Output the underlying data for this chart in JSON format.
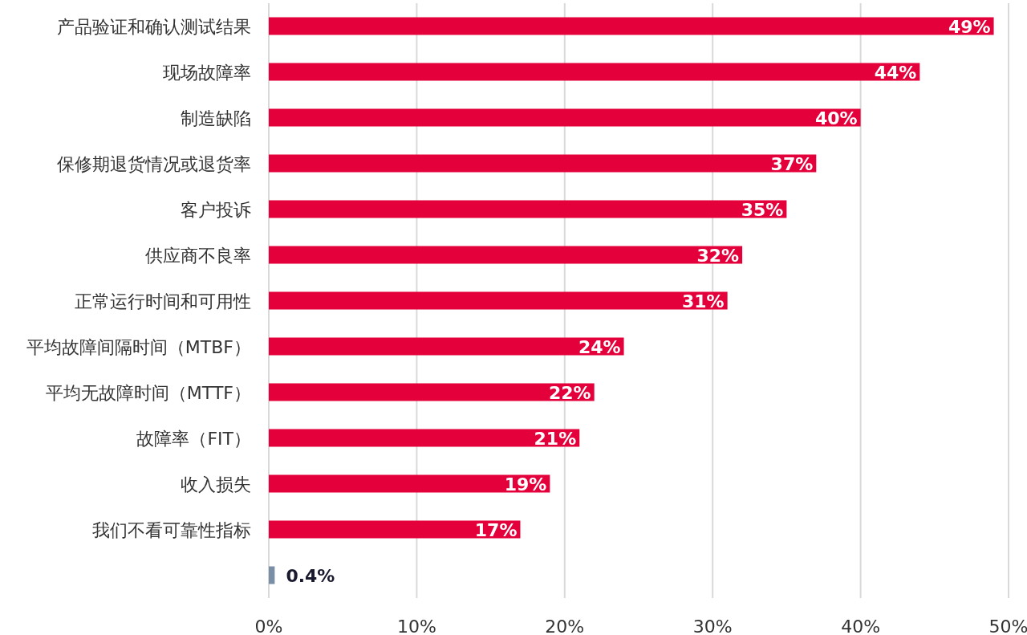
{
  "chart_data": {
    "type": "bar",
    "orientation": "horizontal",
    "categories": [
      "产品验证和确认测试结果",
      "现场故障率",
      "制造缺陷",
      "保修期退货情况或退货率",
      "客户投诉",
      "供应商不良率",
      "正常运行时间和可用性",
      "平均故障间隔时间（MTBF）",
      "平均无故障时间（MTTF）",
      "故障率（FIT）",
      "收入损失",
      "我们不看可靠性指标",
      null
    ],
    "values": [
      49,
      44,
      40,
      37,
      35,
      32,
      31,
      24,
      22,
      21,
      19,
      17,
      0.4
    ],
    "colors": [
      "#e4003b",
      "#e4003b",
      "#e4003b",
      "#e4003b",
      "#e4003b",
      "#e4003b",
      "#e4003b",
      "#e4003b",
      "#e4003b",
      "#e4003b",
      "#e4003b",
      "#e4003b",
      "#7a8fa6"
    ],
    "value_labels": [
      "49%",
      "44%",
      "40%",
      "37%",
      "35%",
      "32%",
      "31%",
      "24%",
      "22%",
      "21%",
      "19%",
      "17%",
      "0.4%"
    ],
    "xlim": [
      0,
      50
    ],
    "xticks": [
      {
        "value": 0,
        "label": "0%"
      },
      {
        "value": 10,
        "label": "10%"
      },
      {
        "value": 20,
        "label": "20%"
      },
      {
        "value": 30,
        "label": "30%"
      },
      {
        "value": 40,
        "label": "40%"
      },
      {
        "value": 50,
        "label": "50%"
      }
    ],
    "grid": "x"
  }
}
